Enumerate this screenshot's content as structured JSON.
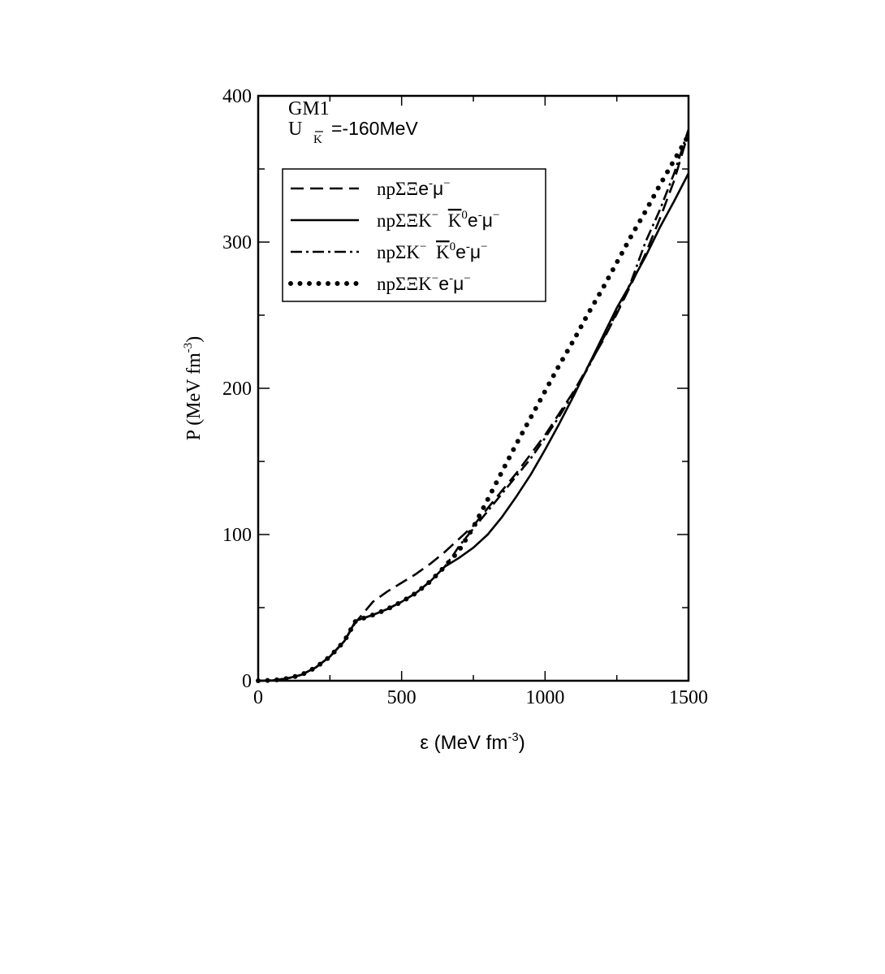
{
  "chart_data": {
    "type": "line",
    "annotation": {
      "model": "GM1",
      "potential_prefix": "U",
      "potential_sub": "K",
      "potential_value": "=-160MeV"
    },
    "xlabel": {
      "main": "ε (MeV fm",
      "sup": "-3",
      "close": ")"
    },
    "ylabel": {
      "main": "P (MeV fm",
      "sup": "-3",
      "close": ")"
    },
    "xlim": [
      0,
      1500
    ],
    "ylim": [
      0,
      400
    ],
    "x_ticks": [
      "0",
      "500",
      "1000",
      "1500"
    ],
    "y_ticks": [
      "0",
      "100",
      "200",
      "300",
      "400"
    ],
    "legend_position": "top-left",
    "legend": [
      {
        "style": "dashed",
        "parts": [
          {
            "t": "npΣΞ",
            "c": "serif"
          },
          {
            "t": "e",
            "c": "sans"
          },
          {
            "t": "-",
            "c": "sup"
          },
          {
            "t": "μ",
            "c": "sans"
          },
          {
            "t": "−",
            "c": "sup"
          }
        ]
      },
      {
        "style": "solid",
        "parts": [
          {
            "t": "npΣΞK",
            "c": "serif"
          },
          {
            "t": "−",
            "c": "sup"
          },
          {
            "t": "  ",
            "c": "serif"
          },
          {
            "t": "K",
            "c": "bar"
          },
          {
            "t": "0",
            "c": "sup"
          },
          {
            "t": "e",
            "c": "sans"
          },
          {
            "t": "-",
            "c": "sup"
          },
          {
            "t": "μ",
            "c": "sans"
          },
          {
            "t": "−",
            "c": "sup"
          }
        ]
      },
      {
        "style": "dashdotdot",
        "parts": [
          {
            "t": "npΣK",
            "c": "serif"
          },
          {
            "t": "−",
            "c": "sup"
          },
          {
            "t": "  ",
            "c": "serif"
          },
          {
            "t": "K",
            "c": "bar"
          },
          {
            "t": "0",
            "c": "sup"
          },
          {
            "t": "e",
            "c": "sans"
          },
          {
            "t": "-",
            "c": "sup"
          },
          {
            "t": "μ",
            "c": "sans"
          },
          {
            "t": "−",
            "c": "sup"
          }
        ]
      },
      {
        "style": "dotted",
        "parts": [
          {
            "t": "npΣΞK",
            "c": "serif"
          },
          {
            "t": "−",
            "c": "sup"
          },
          {
            "t": "e",
            "c": "sans"
          },
          {
            "t": "-",
            "c": "sup"
          },
          {
            "t": "μ",
            "c": "sans"
          },
          {
            "t": "−",
            "c": "sup"
          }
        ]
      }
    ],
    "series": [
      {
        "style": "dashed",
        "x": [
          0,
          50,
          100,
          150,
          200,
          250,
          300,
          340,
          400,
          450,
          500,
          550,
          600,
          650,
          700,
          750,
          800,
          850,
          900,
          950,
          1000,
          1050,
          1100,
          1150,
          1200,
          1250,
          1300,
          1350,
          1400,
          1450,
          1500
        ],
        "y": [
          0,
          0.3,
          1.5,
          4,
          9,
          16.5,
          27,
          40,
          54,
          61,
          67,
          73,
          80,
          88,
          97,
          106,
          118,
          130,
          142,
          155,
          168,
          183,
          198,
          215,
          232,
          251,
          271,
          292,
          316,
          342,
          375
        ]
      },
      {
        "style": "solid",
        "x": [
          0,
          50,
          100,
          150,
          200,
          250,
          300,
          340,
          400,
          450,
          500,
          550,
          600,
          650,
          700,
          750,
          800,
          850,
          900,
          950,
          1000,
          1050,
          1100,
          1150,
          1200,
          1250,
          1300,
          1350,
          1400,
          1450,
          1500
        ],
        "y": [
          0,
          0.3,
          1.5,
          4,
          9,
          16.5,
          27,
          41,
          45,
          49,
          54,
          60,
          68,
          78,
          84,
          91,
          100,
          112,
          126,
          141,
          158,
          176,
          195,
          215,
          235,
          255,
          272,
          290,
          310,
          328,
          347
        ]
      },
      {
        "style": "dashdotdot",
        "x": [
          0,
          50,
          100,
          150,
          200,
          250,
          300,
          340,
          400,
          450,
          500,
          550,
          600,
          650,
          680,
          700,
          750,
          800,
          850,
          900,
          950,
          1000,
          1050,
          1100,
          1150,
          1200,
          1250,
          1300,
          1350,
          1400,
          1450,
          1500
        ],
        "y": [
          0,
          0.3,
          1.5,
          4,
          9,
          16.5,
          27,
          41,
          45,
          49,
          54,
          60,
          68,
          78,
          86,
          92,
          104,
          116,
          128,
          140,
          152,
          166,
          181,
          197,
          214,
          233,
          252,
          273,
          300,
          322,
          347,
          377
        ]
      },
      {
        "style": "dotted",
        "x": [
          0,
          50,
          100,
          150,
          200,
          250,
          300,
          340,
          400,
          450,
          500,
          550,
          600,
          650,
          700,
          750,
          800,
          850,
          900,
          950,
          1000,
          1050,
          1100,
          1150,
          1200,
          1250,
          1300,
          1350,
          1400,
          1450,
          1500
        ],
        "y": [
          0,
          0.3,
          1.5,
          4,
          9,
          16.5,
          27,
          41,
          45,
          49,
          54,
          60,
          68,
          78,
          89,
          105,
          124,
          143,
          162,
          180,
          198,
          216,
          233,
          251,
          268,
          286,
          304,
          321,
          339,
          356,
          373
        ]
      }
    ]
  }
}
